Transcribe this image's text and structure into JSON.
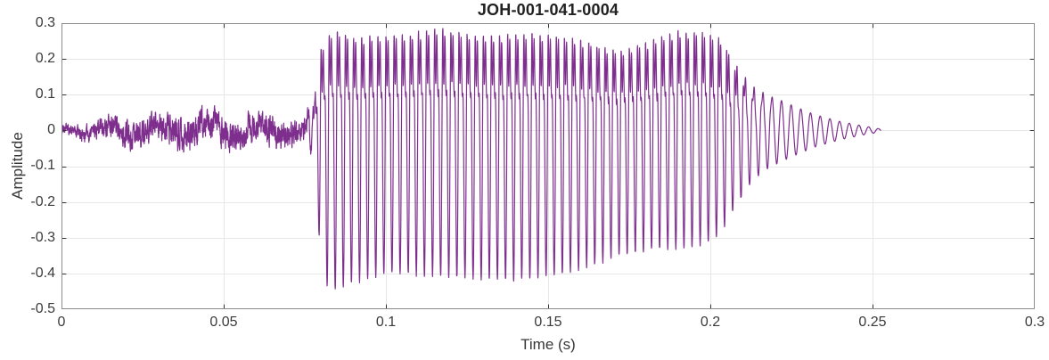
{
  "chart_data": {
    "type": "line",
    "title": "JOH-001-041-0004",
    "xlabel": "Time (s)",
    "ylabel": "Amplitude",
    "xlim": [
      0,
      0.3
    ],
    "ylim": [
      -0.5,
      0.3
    ],
    "xticks": [
      0,
      0.05,
      0.1,
      0.15,
      0.2,
      0.25,
      0.3
    ],
    "xtick_labels": [
      "0",
      "0.05",
      "0.1",
      "0.15",
      "0.2",
      "0.25",
      "0.3"
    ],
    "yticks": [
      0.3,
      0.2,
      0.1,
      0,
      -0.1,
      -0.2,
      -0.3,
      -0.4,
      -0.5
    ],
    "ytick_labels": [
      "0.3",
      "0.2",
      "0.1",
      "0",
      "-0.1",
      "-0.2",
      "-0.3",
      "-0.4",
      "-0.5"
    ],
    "grid": true,
    "legend": null,
    "line_color": "#7E2F8E",
    "grid_color": "#e7e7e7",
    "axis_color": "#8c8c8c",
    "tick_color": "#333333",
    "text_color": "#3b3b3b",
    "waveform": {
      "description": "Speech waveform: low-level noise 0-0.078 s, strong voiced vowel 0.08-0.21 s at ~400 Hz fundamental (peaks ~+0.285, troughs ~-0.445), damped oscillatory tail ~335 Hz ending near 0.253 s",
      "sample_rate": 16000,
      "t_end": 0.2525,
      "noise": {
        "seed": 1234567,
        "lf_hz": 65,
        "envelope": [
          [
            0,
            0.018
          ],
          [
            0.005,
            0.025
          ],
          [
            0.012,
            0.032
          ],
          [
            0.02,
            0.045
          ],
          [
            0.03,
            0.052
          ],
          [
            0.042,
            0.058
          ],
          [
            0.05,
            0.06
          ],
          [
            0.06,
            0.055
          ],
          [
            0.068,
            0.05
          ],
          [
            0.074,
            0.042
          ],
          [
            0.0775,
            0.028
          ],
          [
            0.08,
            0
          ]
        ]
      },
      "voiced": {
        "f0_hz": 400,
        "f0_end_hz": 335,
        "f0_glide": [
          0.205,
          0.222
        ],
        "harmonics": [
          [
            1,
            1.0,
            0
          ],
          [
            2,
            0.5,
            1.3
          ],
          [
            3,
            0.25,
            2.2
          ],
          [
            4,
            0.12,
            0.6
          ]
        ],
        "env_pos": [
          [
            0.0755,
            0
          ],
          [
            0.0765,
            0.09
          ],
          [
            0.0775,
            0.05
          ],
          [
            0.0795,
            0.22
          ],
          [
            0.082,
            0.265
          ],
          [
            0.085,
            0.275
          ],
          [
            0.09,
            0.26
          ],
          [
            0.1,
            0.265
          ],
          [
            0.11,
            0.275
          ],
          [
            0.117,
            0.285
          ],
          [
            0.125,
            0.27
          ],
          [
            0.135,
            0.265
          ],
          [
            0.145,
            0.27
          ],
          [
            0.155,
            0.265
          ],
          [
            0.165,
            0.24
          ],
          [
            0.172,
            0.225
          ],
          [
            0.18,
            0.245
          ],
          [
            0.19,
            0.28
          ],
          [
            0.197,
            0.275
          ],
          [
            0.203,
            0.255
          ],
          [
            0.208,
            0.19
          ],
          [
            0.213,
            0.13
          ],
          [
            0.218,
            0.1
          ],
          [
            0.224,
            0.075
          ],
          [
            0.232,
            0.045
          ],
          [
            0.24,
            0.025
          ],
          [
            0.2475,
            0.012
          ],
          [
            0.2525,
            0.004
          ]
        ],
        "env_neg": [
          [
            0.0755,
            0
          ],
          [
            0.0765,
            -0.05
          ],
          [
            0.0775,
            -0.1
          ],
          [
            0.0795,
            -0.3
          ],
          [
            0.082,
            -0.44
          ],
          [
            0.0855,
            -0.445
          ],
          [
            0.09,
            -0.425
          ],
          [
            0.1,
            -0.4
          ],
          [
            0.115,
            -0.405
          ],
          [
            0.125,
            -0.415
          ],
          [
            0.135,
            -0.42
          ],
          [
            0.145,
            -0.415
          ],
          [
            0.155,
            -0.4
          ],
          [
            0.165,
            -0.375
          ],
          [
            0.172,
            -0.35
          ],
          [
            0.18,
            -0.335
          ],
          [
            0.19,
            -0.33
          ],
          [
            0.197,
            -0.32
          ],
          [
            0.203,
            -0.29
          ],
          [
            0.208,
            -0.21
          ],
          [
            0.213,
            -0.14
          ],
          [
            0.218,
            -0.105
          ],
          [
            0.224,
            -0.078
          ],
          [
            0.232,
            -0.047
          ],
          [
            0.24,
            -0.026
          ],
          [
            0.2475,
            -0.012
          ],
          [
            0.2525,
            -0.004
          ]
        ]
      }
    }
  }
}
